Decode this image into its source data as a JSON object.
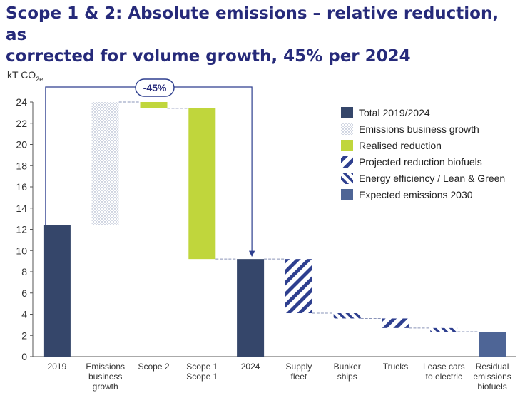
{
  "title_lines": [
    "Scope 1 & 2: Absolute emissions – relative reduction, as",
    "corrected for volume growth, 45% per 2024"
  ],
  "colors": {
    "total": "#35466a",
    "growth": "#b8c2d6",
    "realised": "#c0d63c",
    "biofuels": "#2e3f8f",
    "efficiency": "#2e3f8f",
    "expected": "#4e6596",
    "title": "#262a7a",
    "connector": "#8a94b8"
  },
  "chart_data": {
    "type": "bar",
    "subtype": "waterfall",
    "ylabel": "kT CO",
    "ylabel_sub": "2e",
    "ylim": [
      0,
      24
    ],
    "yticks": [
      0,
      2,
      4,
      6,
      8,
      10,
      12,
      14,
      16,
      18,
      20,
      22,
      24
    ],
    "grid": false,
    "callout": "-45%",
    "legend": [
      {
        "label": "Total 2019/2024",
        "style": "total"
      },
      {
        "label": "Emissions business growth",
        "style": "growth"
      },
      {
        "label": "Realised reduction",
        "style": "realised"
      },
      {
        "label": "Projected reduction biofuels",
        "style": "biofuels"
      },
      {
        "label": "Energy efficiency / Lean & Green",
        "style": "efficiency"
      },
      {
        "label": "Expected emissions 2030",
        "style": "expected"
      }
    ],
    "bars": [
      {
        "label": [
          "2019"
        ],
        "from": 0,
        "to": 12.4,
        "style": "total"
      },
      {
        "label": [
          "Emissions",
          "business",
          "growth"
        ],
        "from": 12.4,
        "to": 24.0,
        "style": "growth"
      },
      {
        "label": [
          "Scope 2"
        ],
        "from": 23.4,
        "to": 24.0,
        "style": "realised"
      },
      {
        "label": [
          "Scope 1",
          "Scope 1"
        ],
        "from": 9.2,
        "to": 23.4,
        "style": "realised"
      },
      {
        "label": [
          "2024"
        ],
        "from": 0,
        "to": 9.2,
        "style": "total"
      },
      {
        "label": [
          "Supply",
          "fleet"
        ],
        "from": 4.1,
        "to": 9.2,
        "style": "biofuels"
      },
      {
        "label": [
          "Bunker",
          "ships"
        ],
        "from": 3.6,
        "to": 4.1,
        "style": "efficiency"
      },
      {
        "label": [
          "Trucks"
        ],
        "from": 2.7,
        "to": 3.6,
        "style": "biofuels"
      },
      {
        "label": [
          "Lease cars",
          "to electric"
        ],
        "from": 2.35,
        "to": 2.7,
        "style": "efficiency"
      },
      {
        "label": [
          "Residual",
          "emissions",
          "biofuels"
        ],
        "from": 0,
        "to": 2.35,
        "style": "expected"
      }
    ]
  }
}
